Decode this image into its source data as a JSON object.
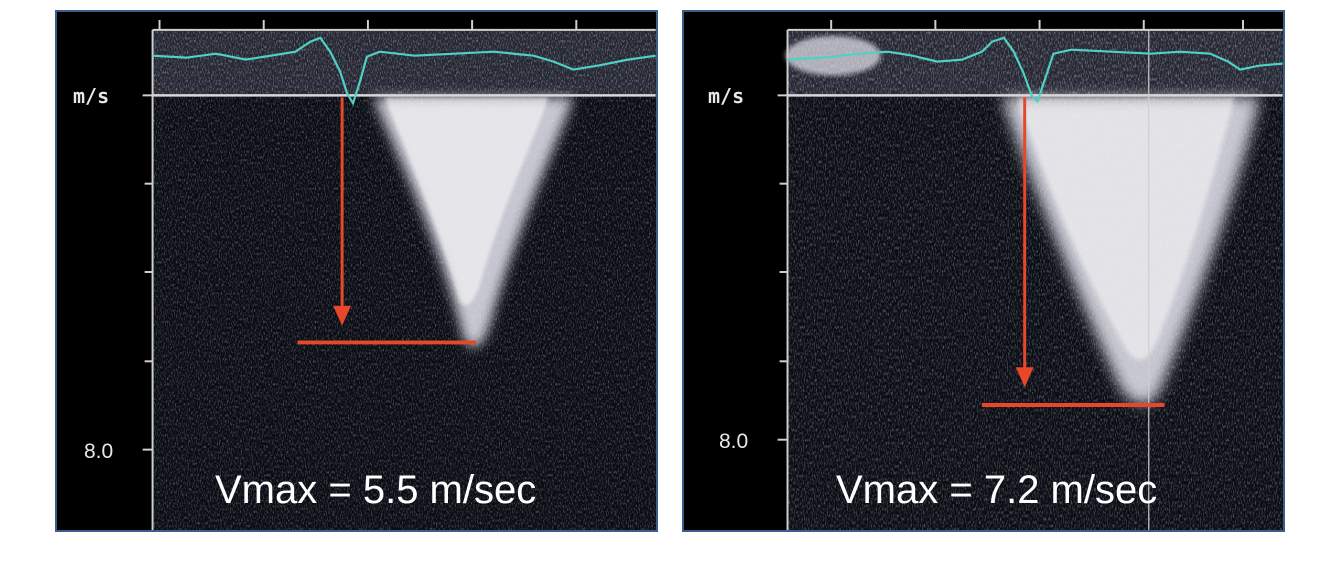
{
  "panels": [
    {
      "unit_label": "m/s",
      "scale_label": "8.0",
      "vmax_text": "Vmax = 5.5 m/sec",
      "vmax_value": 5.5,
      "vmax_unit": "m/sec"
    },
    {
      "unit_label": "m/s",
      "scale_label": "8.0",
      "vmax_text": "Vmax = 7.2 m/sec",
      "vmax_value": 7.2,
      "vmax_unit": "m/sec"
    }
  ],
  "colors": {
    "panel_border": "#3b5f8a",
    "ecg_trace": "#4fd1c5",
    "measurement_marker": "#e8472a",
    "doppler_signal": "#e6e6f0",
    "background": "#000000"
  }
}
